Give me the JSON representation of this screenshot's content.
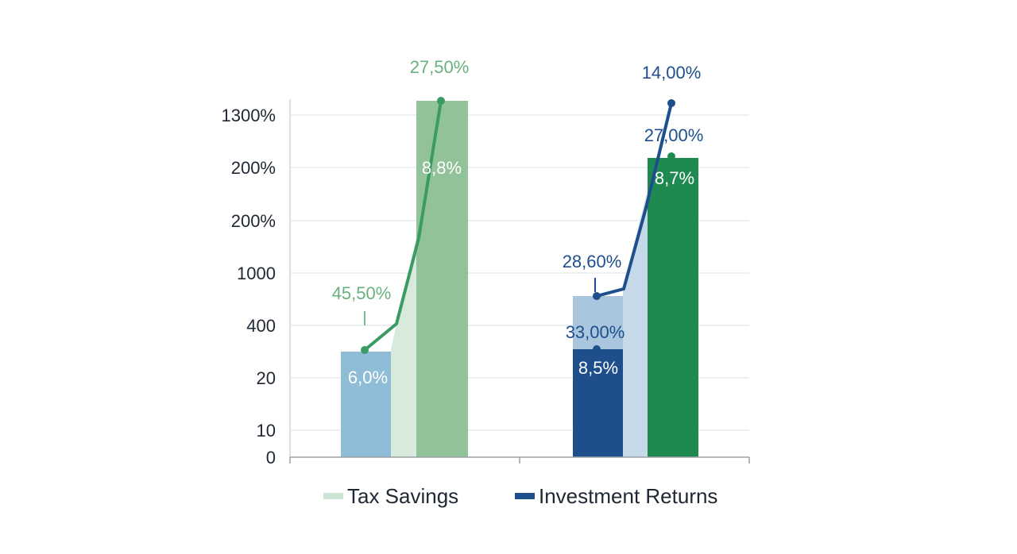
{
  "chart_data": {
    "type": "bar",
    "grid": true,
    "legend_position": "bottom-center",
    "y_tick_labels": [
      "1300%",
      "200%",
      "200%",
      "1000",
      "400",
      "20",
      "10",
      "0"
    ],
    "groups": [
      {
        "name": "",
        "bars": [
          {
            "series": "Tax Savings",
            "shade": "light",
            "value_pct": 6.0,
            "label": "6,0%",
            "color": "#8fbcd6"
          },
          {
            "series": "Tax Savings",
            "shade": "dark",
            "value_pct": 8.8,
            "label": "8,8%",
            "color": "#92c299"
          }
        ],
        "line": {
          "color": "#3c9a63",
          "points": [
            45.5,
            27.5
          ],
          "point_labels": [
            "45,50%",
            "27,50%"
          ],
          "label_color": "#6ab17f"
        }
      },
      {
        "name": "",
        "bars": [
          {
            "series": "Investment Returns",
            "shade": "light",
            "value_pct": 28.6,
            "label": "",
            "color": "#a9c6de"
          },
          {
            "series": "Investment Returns",
            "shade": "dark",
            "value_pct": 8.5,
            "label": "8,5%",
            "color": "#1e4f8c"
          },
          {
            "series": "Investment Returns",
            "shade": "green",
            "value_pct": 8.7,
            "label": "8,7%",
            "color": "#1e8a50"
          }
        ],
        "line": {
          "color": "#1e4f8c",
          "points": [
            33.0,
            28.6,
            14.0
          ],
          "point_labels": [
            "33,00%",
            "28,60%",
            "14,00%"
          ],
          "label_color": "#1e4f8c"
        },
        "extra_label": {
          "text": "27,00%",
          "color": "#1e4f8c",
          "marker_color": "#1e8a50"
        }
      }
    ],
    "legend": [
      {
        "name": "Tax Savings",
        "color": "#cde3d3"
      },
      {
        "name": "Investment Returns",
        "color": "#1e4f8c"
      }
    ]
  }
}
